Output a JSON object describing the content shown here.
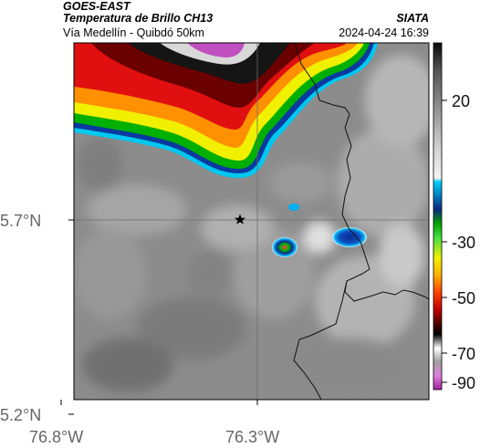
{
  "header": {
    "satellite": "GOES-EAST",
    "product": "Temperatura de Brillo CH13",
    "organization": "SIATA",
    "area": "Vía Medellín - Quibdó 50km",
    "timestamp": "2024-04-24 16:39"
  },
  "axes": {
    "lat_ticks": [
      "5.7°N",
      "5.2°N"
    ],
    "lon_ticks": [
      "76.8°W",
      "76.3°W"
    ]
  },
  "colorbar": {
    "ticks": [
      "20",
      "-30",
      "-50",
      "-70",
      "-90"
    ],
    "colors": {
      "warm": "#c8c8c8",
      "cyan": "#00c8e6",
      "blue": "#1040a0",
      "green": "#00c000",
      "yellow": "#f0f000",
      "orange": "#ff8000",
      "red": "#e00000",
      "dark_red": "#700000",
      "black": "#000000",
      "magenta": "#e040c0"
    }
  },
  "map": {
    "marker_icon": "star-icon"
  }
}
